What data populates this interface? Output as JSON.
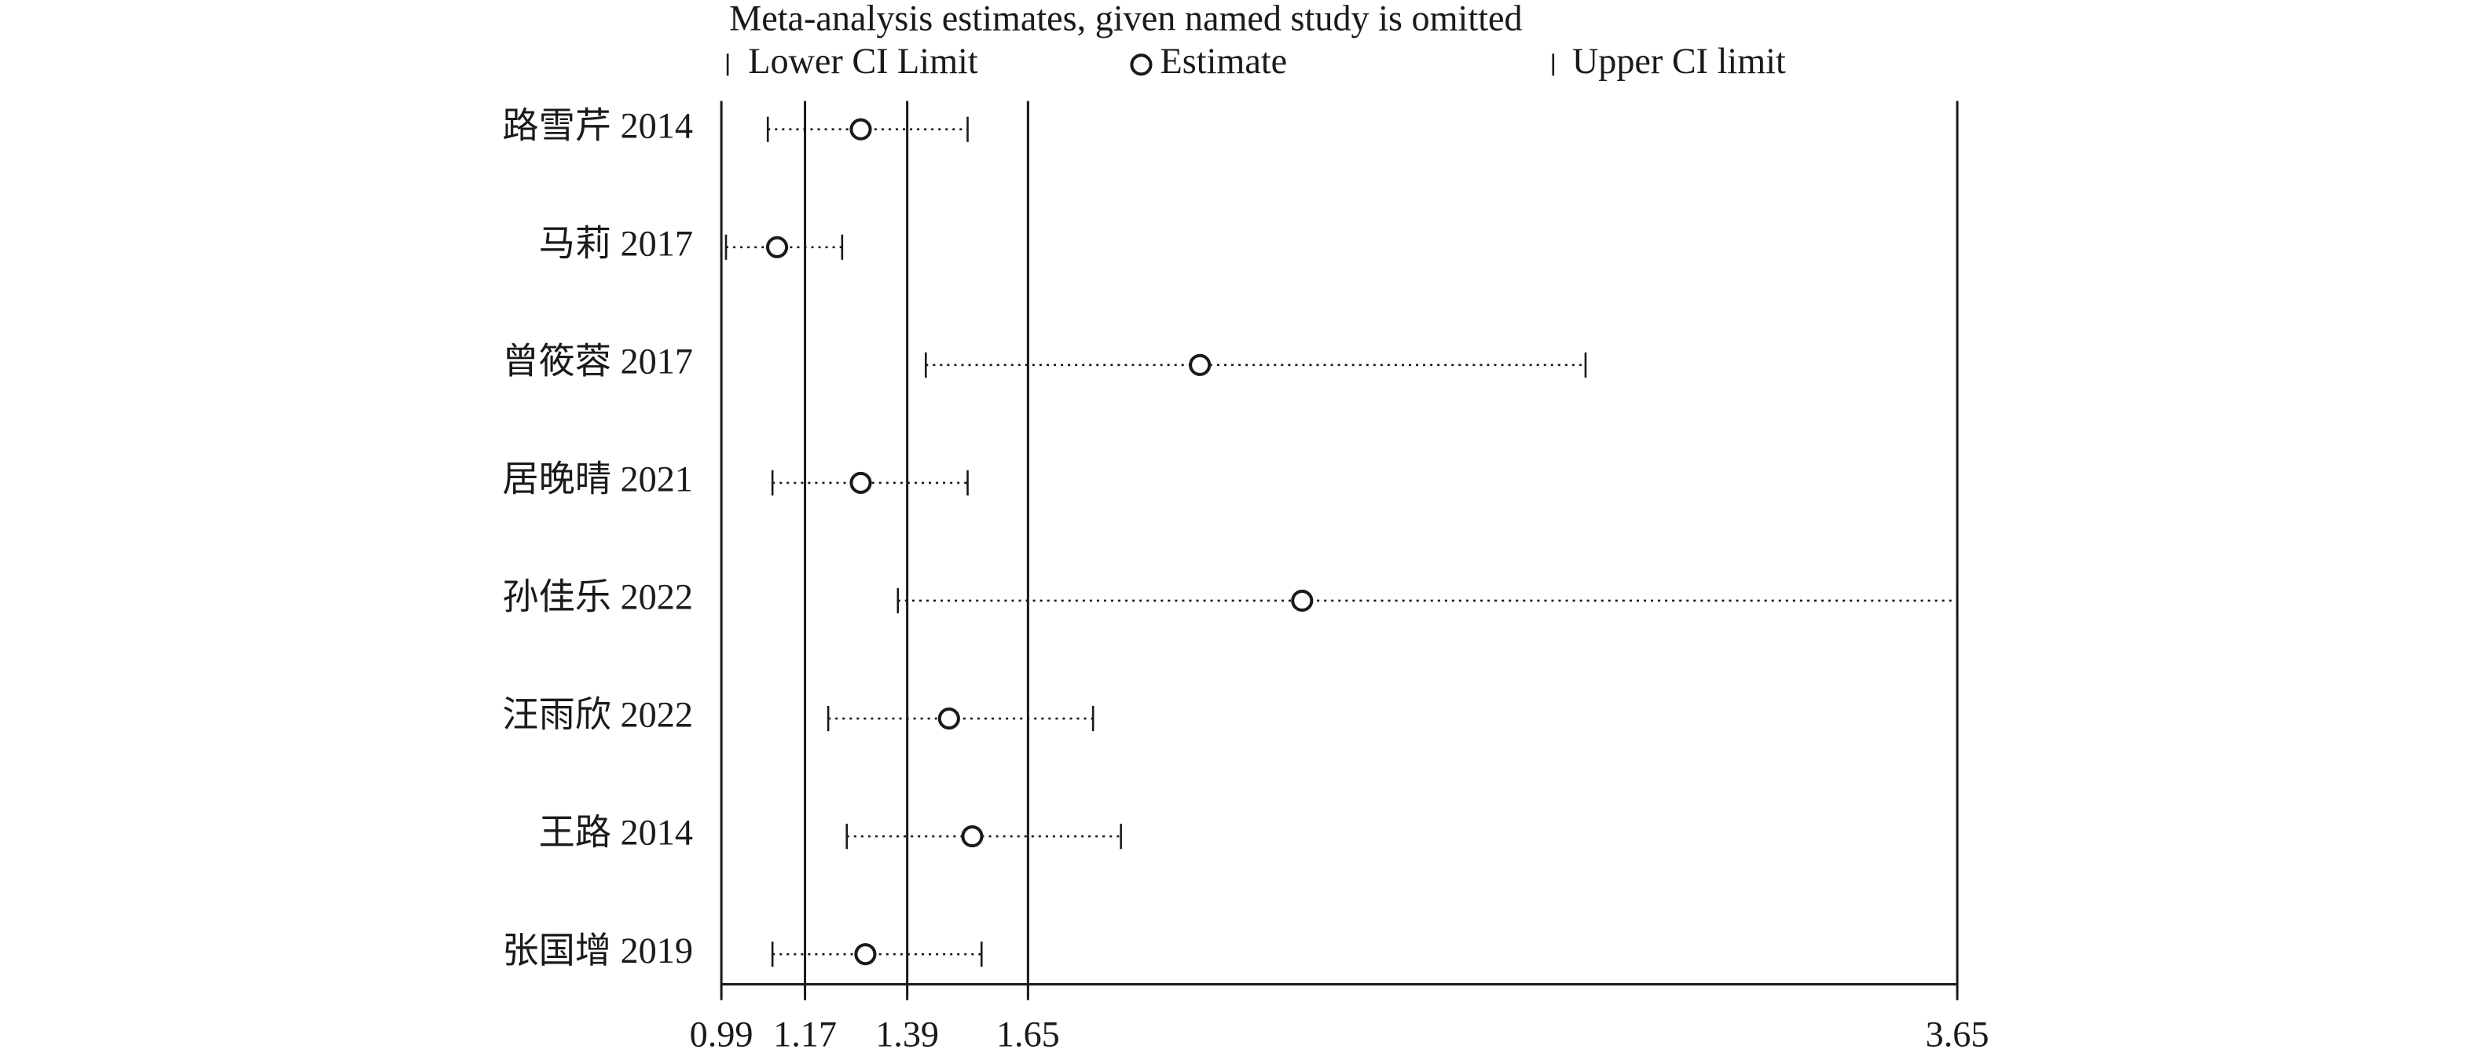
{
  "chart_data": {
    "type": "forest",
    "title": "Meta-analysis estimates, given named study is omitted",
    "categories": [
      "路雪芹 2014",
      "马莉 2017",
      "曾筱蓉 2017",
      "居晚晴 2021",
      "孙佳乐 2022",
      "汪雨欣 2022",
      "王路 2014",
      "张国增 2019"
    ],
    "series": [
      {
        "name": "Lower CI Limit",
        "values": [
          1.09,
          1.0,
          1.43,
          1.1,
          1.37,
          1.22,
          1.26,
          1.1
        ]
      },
      {
        "name": "Estimate",
        "values": [
          1.29,
          1.11,
          2.02,
          1.29,
          2.24,
          1.48,
          1.53,
          1.3
        ]
      },
      {
        "name": "Upper CI limit",
        "values": [
          1.52,
          1.25,
          2.85,
          1.52,
          3.65,
          1.79,
          1.85,
          1.55
        ]
      }
    ],
    "color": "#1a1a1a",
    "xlim": [
      0.99,
      3.65
    ],
    "xticks": [
      0.99,
      1.17,
      1.39,
      1.65,
      3.65
    ],
    "grid": true
  }
}
